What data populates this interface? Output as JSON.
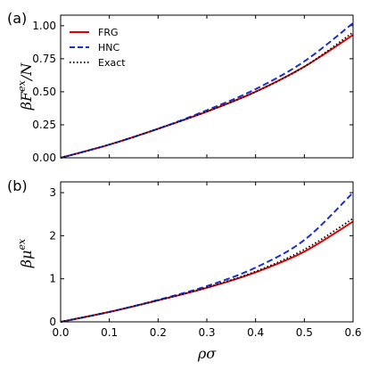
{
  "chart_data": [
    {
      "type": "line",
      "panel_label": "(a)",
      "ylabel": "βF^ex/N",
      "ylabel_main": "βF",
      "ylabel_sup": "ex",
      "ylabel_tail": "/N",
      "xlim": [
        0.0,
        0.6
      ],
      "ylim": [
        0.0,
        1.08
      ],
      "yticks": [
        0.0,
        0.25,
        0.5,
        0.75,
        1.0
      ],
      "ytick_labels": [
        "0.00",
        "0.25",
        "0.50",
        "0.75",
        "1.00"
      ],
      "legend": {
        "placement": "top-left",
        "entries": [
          "FRG",
          "HNC",
          "Exact"
        ]
      },
      "series": [
        {
          "name": "FRG",
          "color": "#e00000",
          "style": "solid",
          "x": [
            0.0,
            0.1,
            0.2,
            0.3,
            0.4,
            0.5,
            0.6
          ],
          "y": [
            0.0,
            0.1,
            0.22,
            0.35,
            0.5,
            0.69,
            0.93
          ]
        },
        {
          "name": "HNC",
          "color": "#1530d0",
          "style": "dashed",
          "x": [
            0.0,
            0.1,
            0.2,
            0.3,
            0.4,
            0.5,
            0.6
          ],
          "y": [
            0.0,
            0.1,
            0.22,
            0.36,
            0.52,
            0.73,
            1.02
          ]
        },
        {
          "name": "Exact",
          "color": "#000000",
          "style": "dotted",
          "x": [
            0.0,
            0.1,
            0.2,
            0.3,
            0.4,
            0.5,
            0.6
          ],
          "y": [
            0.0,
            0.1,
            0.22,
            0.35,
            0.5,
            0.69,
            0.95
          ]
        }
      ]
    },
    {
      "type": "line",
      "panel_label": "(b)",
      "ylabel": "βμ^ex",
      "ylabel_main": "βμ",
      "ylabel_sup": "ex",
      "ylabel_tail": "",
      "xlabel": "ρσ",
      "xlim": [
        0.0,
        0.6
      ],
      "ylim": [
        0.0,
        3.25
      ],
      "yticks": [
        0,
        1,
        2,
        3
      ],
      "ytick_labels": [
        "0",
        "1",
        "2",
        "3"
      ],
      "xticks": [
        0.0,
        0.1,
        0.2,
        0.3,
        0.4,
        0.5,
        0.6
      ],
      "xtick_labels": [
        "0.0",
        "0.1",
        "0.2",
        "0.3",
        "0.4",
        "0.5",
        "0.6"
      ],
      "series": [
        {
          "name": "FRG",
          "color": "#e00000",
          "style": "solid",
          "x": [
            0.0,
            0.1,
            0.2,
            0.3,
            0.4,
            0.5,
            0.6
          ],
          "y": [
            0.0,
            0.23,
            0.5,
            0.79,
            1.15,
            1.63,
            2.33
          ]
        },
        {
          "name": "HNC",
          "color": "#1530d0",
          "style": "dashed",
          "x": [
            0.0,
            0.1,
            0.2,
            0.3,
            0.4,
            0.5,
            0.6
          ],
          "y": [
            0.0,
            0.23,
            0.51,
            0.83,
            1.26,
            1.9,
            3.0
          ]
        },
        {
          "name": "Exact",
          "color": "#000000",
          "style": "dotted",
          "x": [
            0.0,
            0.1,
            0.2,
            0.3,
            0.4,
            0.5,
            0.6
          ],
          "y": [
            0.0,
            0.23,
            0.5,
            0.8,
            1.17,
            1.68,
            2.4
          ]
        }
      ]
    }
  ]
}
